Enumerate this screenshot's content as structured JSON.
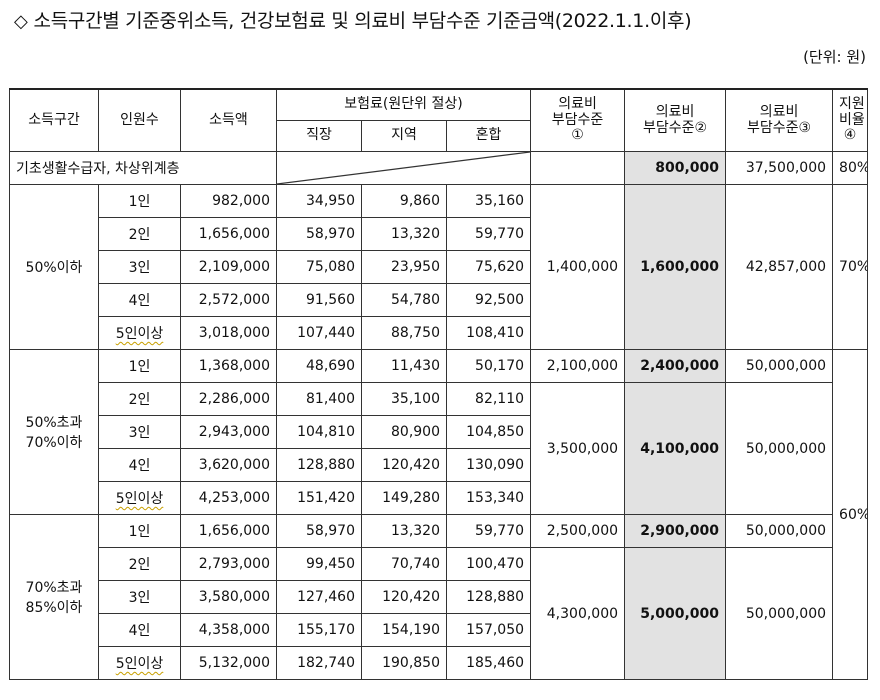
{
  "title": "소득구간별 기준중위소득, 건강보험료 및 의료비 부담수준 기준금액(2022.1.1.이후)",
  "title_marker": "◇",
  "unit": "(단위: 원)",
  "header": {
    "income_bracket": "소득구간",
    "household_size": "인원수",
    "income": "소득액",
    "premium_group": "보험료(원단위 절상)",
    "employee": "직장",
    "regional": "지역",
    "mixed": "혼합",
    "burden1": [
      "의료비",
      "부담수준",
      "①"
    ],
    "burden2": [
      "의료비",
      "부담수준②"
    ],
    "burden3": [
      "의료비",
      "부담수준③"
    ],
    "support": [
      "지원",
      "비율",
      "④"
    ]
  },
  "basic_row": {
    "label": "기초생활수급자, 차상위계층",
    "burden2": "800,000",
    "burden3": "37,500,000",
    "support": "80%"
  },
  "groups": [
    {
      "label": [
        "50%이하"
      ],
      "rows": [
        {
          "persons": "1인",
          "income": "982,000",
          "employee": "34,950",
          "regional": "9,860",
          "mixed": "35,160"
        },
        {
          "persons": "2인",
          "income": "1,656,000",
          "employee": "58,970",
          "regional": "13,320",
          "mixed": "59,770"
        },
        {
          "persons": "3인",
          "income": "2,109,000",
          "employee": "75,080",
          "regional": "23,950",
          "mixed": "75,620"
        },
        {
          "persons": "4인",
          "income": "2,572,000",
          "employee": "91,560",
          "regional": "54,780",
          "mixed": "92,500"
        },
        {
          "persons": "5인이상",
          "income": "3,018,000",
          "employee": "107,440",
          "regional": "88,750",
          "mixed": "108,410"
        }
      ],
      "burden1": "1,400,000",
      "burden2": "1,600,000",
      "burden3": "42,857,000",
      "support": "70%"
    },
    {
      "label": [
        "50%초과",
        "70%이하"
      ],
      "rows": [
        {
          "persons": "1인",
          "income": "1,368,000",
          "employee": "48,690",
          "regional": "11,430",
          "mixed": "50,170"
        },
        {
          "persons": "2인",
          "income": "2,286,000",
          "employee": "81,400",
          "regional": "35,100",
          "mixed": "82,110"
        },
        {
          "persons": "3인",
          "income": "2,943,000",
          "employee": "104,810",
          "regional": "80,900",
          "mixed": "104,850"
        },
        {
          "persons": "4인",
          "income": "3,620,000",
          "employee": "128,880",
          "regional": "120,420",
          "mixed": "130,090"
        },
        {
          "persons": "5인이상",
          "income": "4,253,000",
          "employee": "151,420",
          "regional": "149,280",
          "mixed": "153,340"
        }
      ],
      "single": {
        "burden1": "2,100,000",
        "burden2": "2,400,000",
        "burden3": "50,000,000"
      },
      "burden1": "3,500,000",
      "burden2": "4,100,000",
      "burden3": "50,000,000"
    },
    {
      "label": [
        "70%초과",
        "85%이하"
      ],
      "rows": [
        {
          "persons": "1인",
          "income": "1,656,000",
          "employee": "58,970",
          "regional": "13,320",
          "mixed": "59,770"
        },
        {
          "persons": "2인",
          "income": "2,793,000",
          "employee": "99,450",
          "regional": "70,740",
          "mixed": "100,470"
        },
        {
          "persons": "3인",
          "income": "3,580,000",
          "employee": "127,460",
          "regional": "120,420",
          "mixed": "128,880"
        },
        {
          "persons": "4인",
          "income": "4,358,000",
          "employee": "155,170",
          "regional": "154,190",
          "mixed": "157,050"
        },
        {
          "persons": "5인이상",
          "income": "5,132,000",
          "employee": "182,740",
          "regional": "190,850",
          "mixed": "185,460"
        }
      ],
      "single": {
        "burden1": "2,500,000",
        "burden2": "2,900,000",
        "burden3": "50,000,000"
      },
      "burden1": "4,300,000",
      "burden2": "5,000,000",
      "burden3": "50,000,000"
    }
  ],
  "shared_support": "60%"
}
